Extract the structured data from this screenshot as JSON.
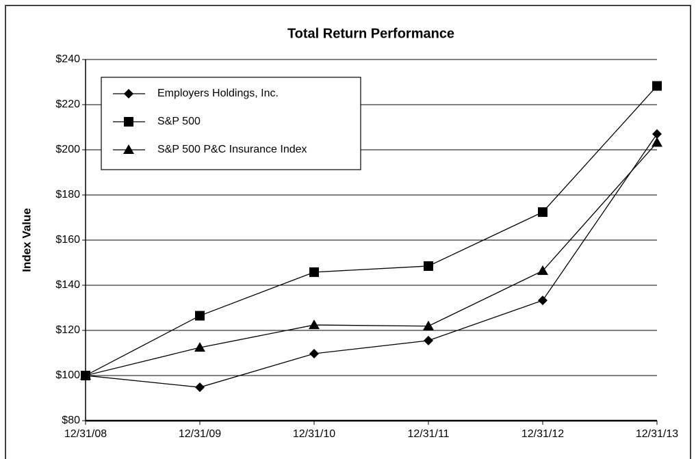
{
  "chart_data": {
    "type": "line",
    "title": "Total Return Performance",
    "y_label": "Index Value",
    "categories": [
      "12/31/08",
      "12/31/09",
      "12/31/10",
      "12/31/11",
      "12/31/12",
      "12/31/13"
    ],
    "series": [
      {
        "name": "Employers Holdings, Inc.",
        "color": "#000000",
        "marker": "diamond",
        "values": [
          100,
          94.8,
          109.7,
          115.5,
          133.3,
          207
        ]
      },
      {
        "name": "S&P 500",
        "color": "#000000",
        "marker": "square",
        "values": [
          100,
          126.5,
          145.8,
          148.5,
          172.4,
          228.3
        ]
      },
      {
        "name": "S&P 500 P&C Insurance Index",
        "color": "#000000",
        "marker": "triangle",
        "values": [
          100,
          112.4,
          122.4,
          121.9,
          146.4,
          203.2
        ]
      }
    ],
    "ylim": [
      80,
      240
    ],
    "yticks": [
      {
        "value": 80,
        "label": "$80"
      },
      {
        "value": 100,
        "label": "$100"
      },
      {
        "value": 120,
        "label": "$120"
      },
      {
        "value": 140,
        "label": "$140"
      },
      {
        "value": 160,
        "label": "$160"
      },
      {
        "value": 180,
        "label": "$180"
      },
      {
        "value": 200,
        "label": "$200"
      },
      {
        "value": 220,
        "label": "$220"
      },
      {
        "value": 240,
        "label": "$240"
      }
    ],
    "grid": true,
    "legend": "top-left"
  }
}
